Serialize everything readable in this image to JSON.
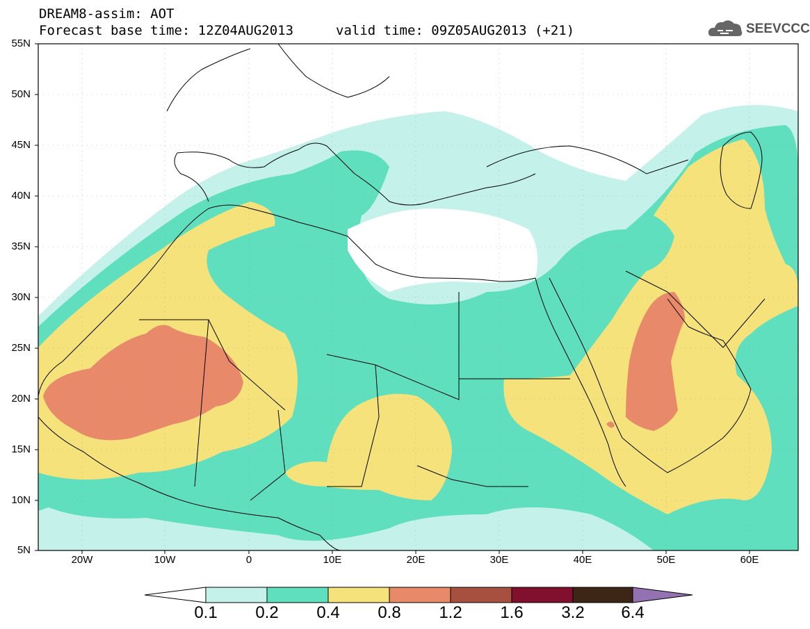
{
  "header": {
    "title_line1": "DREAM8-assim: AOT",
    "title_line2": "Forecast base time: 12Z04AUG2013",
    "valid_time": "valid time: 09Z05AUG2013 (+21)",
    "logo_text": "SEEVCCC",
    "logo_icon": "cloud-icon"
  },
  "map": {
    "lat_labels": [
      "55N",
      "50N",
      "45N",
      "40N",
      "35N",
      "30N",
      "25N",
      "20N",
      "15N",
      "10N",
      "5N"
    ],
    "lon_labels": [
      "20W",
      "10W",
      "0",
      "10E",
      "20E",
      "30E",
      "40E",
      "50E",
      "60E"
    ],
    "colors": {
      "c01": "#c4f2ea",
      "c02": "#5fdfbe",
      "c04": "#f5e27a",
      "c08": "#e8896a",
      "border": "#000000"
    }
  },
  "colorbar": {
    "labels": [
      "0.1",
      "0.2",
      "0.4",
      "0.8",
      "1.2",
      "1.6",
      "3.2",
      "6.4"
    ],
    "colors": [
      "#c4f2ea",
      "#5fdfbe",
      "#f5e27a",
      "#e8896a",
      "#a8503f",
      "#80102e",
      "#3d2616"
    ],
    "under_color": "#ffffff",
    "over_color": "#9471b0"
  }
}
